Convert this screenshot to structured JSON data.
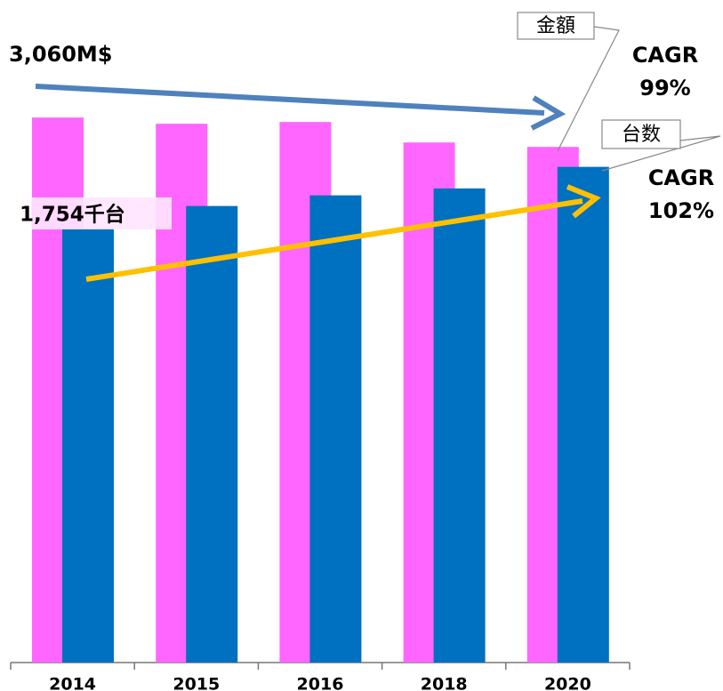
{
  "chart_data": {
    "type": "bar",
    "categories": [
      "2014",
      "2015",
      "2016",
      "2018",
      "2020"
    ],
    "series": [
      {
        "name": "金額",
        "color": "#ff66ff",
        "values": [
          3060,
          3025,
          3035,
          2920,
          2895
        ],
        "value_labels": [
          "3,060M$",
          null,
          null,
          null,
          null
        ]
      },
      {
        "name": "台数",
        "color": "#0070c0",
        "axis": "y2",
        "values": [
          1754,
          1844,
          1887,
          1915,
          2002
        ],
        "value_labels": [
          "1,754千台",
          null,
          null,
          null,
          null
        ]
      }
    ],
    "ylim": [
      0,
      3670
    ],
    "y2lim": [
      0,
      2640
    ],
    "annotations": [
      [
        "CAGR",
        "99%"
      ],
      [
        "CAGR",
        "102%"
      ]
    ]
  }
}
